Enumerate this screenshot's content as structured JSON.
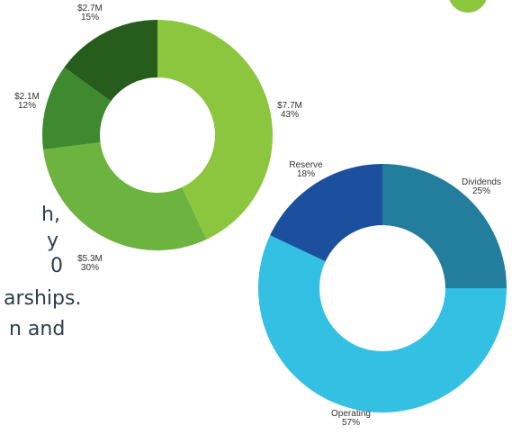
{
  "chart_data": [
    {
      "type": "pie",
      "categories": [
        "$7.7M",
        "$5.3M",
        "$2.1M",
        "$2.7M"
      ],
      "values": [
        43,
        30,
        12,
        15
      ],
      "value_labels": [
        "43%",
        "30%",
        "12%",
        "15%"
      ],
      "colors": [
        "#8cc63f",
        "#6cb33f",
        "#3f8a2e",
        "#265c1c"
      ]
    },
    {
      "type": "pie",
      "categories": [
        "Dividends",
        "Operating",
        "Reserve"
      ],
      "values": [
        25,
        57,
        18
      ],
      "value_labels": [
        "25%",
        "57%",
        "18%"
      ],
      "colors": [
        "#237d9c",
        "#33c0e2",
        "#1c4f9e"
      ]
    }
  ],
  "body_text": [
    "h,",
    "y",
    "0",
    "arships.",
    "n and"
  ]
}
